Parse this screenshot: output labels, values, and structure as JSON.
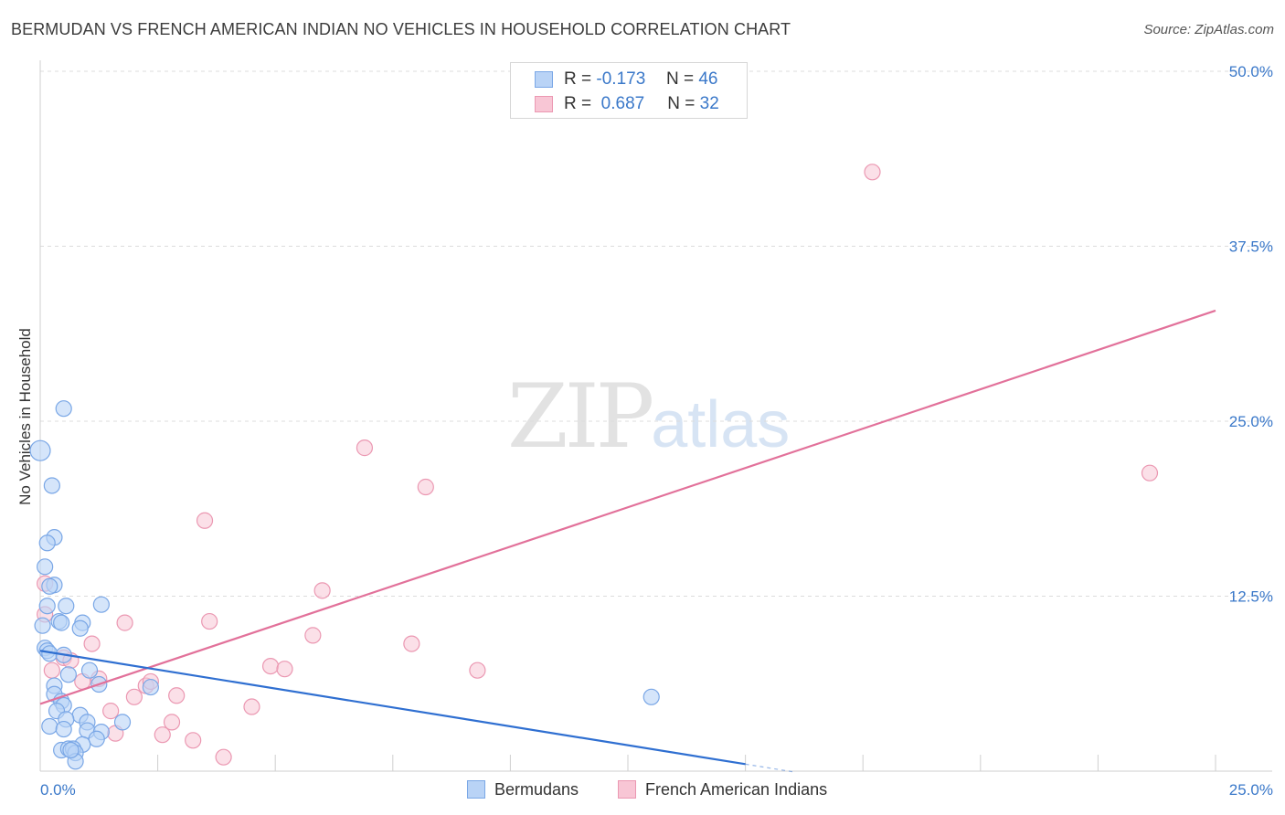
{
  "title": "BERMUDAN VS FRENCH AMERICAN INDIAN NO VEHICLES IN HOUSEHOLD CORRELATION CHART",
  "source": "Source: ZipAtlas.com",
  "watermark": {
    "zip": "ZIP",
    "atlas": "atlas"
  },
  "legend": {
    "rows": [
      {
        "r_label": "R =",
        "r_value": "-0.173",
        "n_label": "N =",
        "n_value": "46"
      },
      {
        "r_label": "R =",
        "r_value": "0.687",
        "n_label": "N =",
        "n_value": "32"
      }
    ],
    "series_names": [
      "Bermudans",
      "French American Indians"
    ]
  },
  "colors": {
    "bermudans_fill": "#b9d3f6",
    "bermudans_stroke": "#7aa7e6",
    "bermudans_line": "#2f6fd1",
    "french_fill": "#f8c6d5",
    "french_stroke": "#eb98b2",
    "french_line": "#e2719a",
    "grid": "#dcdcdc",
    "tick_text": "#3a78c9"
  },
  "chart_data": {
    "type": "scatter",
    "title": "BERMUDAN VS FRENCH AMERICAN INDIAN NO VEHICLES IN HOUSEHOLD CORRELATION CHART",
    "xlabel": "",
    "ylabel": "No Vehicles in Household",
    "xlim": [
      0,
      25
    ],
    "ylim": [
      0,
      50
    ],
    "x_tick_labels": [
      "0.0%",
      "25.0%"
    ],
    "y_ticks": [
      12.5,
      25.0,
      37.5,
      50.0
    ],
    "y_tick_labels": [
      "12.5%",
      "25.0%",
      "37.5%",
      "50.0%"
    ],
    "grid": true,
    "legend_position": "top-center",
    "series": [
      {
        "name": "Bermudans",
        "r": -0.173,
        "n": 46,
        "points": [
          [
            0.0,
            22.9
          ],
          [
            0.5,
            25.9
          ],
          [
            0.25,
            20.4
          ],
          [
            0.3,
            16.7
          ],
          [
            0.15,
            16.3
          ],
          [
            0.1,
            14.6
          ],
          [
            0.3,
            13.3
          ],
          [
            0.2,
            13.2
          ],
          [
            0.55,
            11.8
          ],
          [
            1.3,
            11.9
          ],
          [
            0.05,
            10.4
          ],
          [
            0.4,
            10.7
          ],
          [
            0.45,
            10.6
          ],
          [
            0.9,
            10.6
          ],
          [
            0.85,
            10.2
          ],
          [
            0.1,
            8.8
          ],
          [
            0.15,
            8.6
          ],
          [
            0.2,
            8.4
          ],
          [
            0.5,
            8.3
          ],
          [
            0.6,
            6.9
          ],
          [
            1.05,
            7.2
          ],
          [
            0.3,
            6.1
          ],
          [
            1.25,
            6.2
          ],
          [
            2.35,
            6.0
          ],
          [
            0.3,
            5.5
          ],
          [
            0.45,
            5.0
          ],
          [
            0.5,
            4.7
          ],
          [
            0.35,
            4.3
          ],
          [
            0.85,
            4.0
          ],
          [
            0.55,
            3.7
          ],
          [
            1.0,
            3.5
          ],
          [
            1.75,
            3.5
          ],
          [
            0.2,
            3.2
          ],
          [
            0.5,
            3.0
          ],
          [
            1.0,
            2.9
          ],
          [
            1.3,
            2.8
          ],
          [
            1.2,
            2.3
          ],
          [
            0.9,
            1.9
          ],
          [
            0.45,
            1.5
          ],
          [
            0.6,
            1.6
          ],
          [
            0.7,
            1.6
          ],
          [
            0.75,
            1.3
          ],
          [
            0.75,
            0.7
          ],
          [
            13.0,
            5.3
          ],
          [
            0.65,
            1.5
          ],
          [
            0.15,
            11.8
          ]
        ]
      },
      {
        "name": "French American Indians",
        "r": 0.687,
        "n": 32,
        "points": [
          [
            17.7,
            42.8
          ],
          [
            6.9,
            23.1
          ],
          [
            8.2,
            20.3
          ],
          [
            23.6,
            21.3
          ],
          [
            3.5,
            17.9
          ],
          [
            0.1,
            13.4
          ],
          [
            6.0,
            12.9
          ],
          [
            0.1,
            11.2
          ],
          [
            3.6,
            10.7
          ],
          [
            1.8,
            10.6
          ],
          [
            5.8,
            9.7
          ],
          [
            1.1,
            9.1
          ],
          [
            7.9,
            9.1
          ],
          [
            0.5,
            8.1
          ],
          [
            0.65,
            7.9
          ],
          [
            4.9,
            7.5
          ],
          [
            5.2,
            7.3
          ],
          [
            9.3,
            7.2
          ],
          [
            0.25,
            7.2
          ],
          [
            1.25,
            6.6
          ],
          [
            0.9,
            6.4
          ],
          [
            2.25,
            6.1
          ],
          [
            2.35,
            6.4
          ],
          [
            2.0,
            5.3
          ],
          [
            2.9,
            5.4
          ],
          [
            1.5,
            4.3
          ],
          [
            4.5,
            4.6
          ],
          [
            2.8,
            3.5
          ],
          [
            1.6,
            2.7
          ],
          [
            2.6,
            2.6
          ],
          [
            3.25,
            2.2
          ],
          [
            3.9,
            1.0
          ]
        ]
      }
    ],
    "trend_lines": [
      {
        "series": "Bermudans",
        "x": [
          0,
          15
        ],
        "y": [
          8.6,
          0.5
        ]
      },
      {
        "series": "French American Indians",
        "x": [
          0,
          25
        ],
        "y": [
          4.8,
          32.9
        ]
      }
    ]
  }
}
